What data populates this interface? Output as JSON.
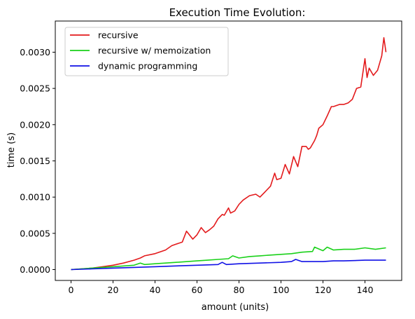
{
  "chart_data": {
    "type": "line",
    "title": "Execution Time Evolution:",
    "xlabel": "amount (units)",
    "ylabel": "time (s)",
    "xlim": [
      -7.5,
      157.5
    ],
    "ylim": [
      -0.00015,
      0.00343
    ],
    "x_ticks": [
      0,
      20,
      40,
      60,
      80,
      100,
      120,
      140
    ],
    "x_tick_labels": [
      "0",
      "20",
      "40",
      "60",
      "80",
      "100",
      "120",
      "140"
    ],
    "y_ticks": [
      0,
      0.0005,
      0.001,
      0.0015,
      0.002,
      0.0025,
      0.003
    ],
    "y_tick_labels": [
      "0.0000",
      "0.0005",
      "0.0010",
      "0.0015",
      "0.0020",
      "0.0025",
      "0.0030"
    ],
    "grid": false,
    "legend_position": "top-left",
    "series": [
      {
        "name": "recursive",
        "color": "#e31a1c",
        "x": [
          0,
          5,
          10,
          15,
          20,
          25,
          30,
          33,
          35,
          40,
          45,
          48,
          50,
          53,
          55,
          58,
          60,
          62,
          64,
          66,
          68,
          70,
          72,
          73,
          75,
          76,
          78,
          80,
          82,
          85,
          88,
          90,
          92,
          95,
          97,
          98,
          100,
          102,
          104,
          106,
          108,
          110,
          112,
          113,
          114,
          116,
          117,
          118,
          120,
          122,
          124,
          125,
          128,
          130,
          132,
          134,
          136,
          138,
          140,
          141,
          142,
          144,
          146,
          148,
          149,
          150
        ],
        "y": [
          0,
          1e-05,
          2e-05,
          4e-05,
          6e-05,
          9e-05,
          0.00013,
          0.00016,
          0.00019,
          0.00022,
          0.00027,
          0.00033,
          0.00035,
          0.00038,
          0.00053,
          0.00042,
          0.00048,
          0.00058,
          0.00051,
          0.00055,
          0.0006,
          0.0007,
          0.00076,
          0.00075,
          0.00085,
          0.00078,
          0.00081,
          0.0009,
          0.00096,
          0.00102,
          0.00104,
          0.001,
          0.00106,
          0.00115,
          0.00133,
          0.00124,
          0.00126,
          0.00145,
          0.00132,
          0.00156,
          0.00142,
          0.0017,
          0.0017,
          0.00166,
          0.00168,
          0.00178,
          0.00185,
          0.00195,
          0.002,
          0.00212,
          0.00225,
          0.00225,
          0.00228,
          0.00228,
          0.0023,
          0.00235,
          0.0025,
          0.00252,
          0.00291,
          0.00265,
          0.00278,
          0.00268,
          0.00275,
          0.00295,
          0.0032,
          0.003
        ]
      },
      {
        "name": "recursive w/ memoization",
        "color": "#1ad11a",
        "x": [
          0,
          10,
          20,
          30,
          33,
          35,
          40,
          50,
          60,
          65,
          70,
          75,
          77,
          80,
          85,
          90,
          95,
          100,
          105,
          110,
          115,
          116,
          120,
          122,
          125,
          130,
          135,
          140,
          145,
          150
        ],
        "y": [
          0,
          2e-05,
          4e-05,
          6e-05,
          9e-05,
          7e-05,
          8e-05,
          0.0001,
          0.00012,
          0.00013,
          0.00014,
          0.00015,
          0.00019,
          0.00016,
          0.00018,
          0.00019,
          0.0002,
          0.00021,
          0.00022,
          0.00024,
          0.00025,
          0.00031,
          0.00026,
          0.00031,
          0.00027,
          0.00028,
          0.00028,
          0.0003,
          0.00028,
          0.0003
        ]
      },
      {
        "name": "dynamic programming",
        "color": "#1010e6",
        "x": [
          0,
          10,
          20,
          30,
          40,
          50,
          60,
          70,
          72,
          74,
          80,
          90,
          100,
          105,
          107,
          110,
          120,
          125,
          130,
          140,
          150
        ],
        "y": [
          0,
          1e-05,
          2e-05,
          3e-05,
          4e-05,
          5e-05,
          6e-05,
          7e-05,
          0.0001,
          7e-05,
          8e-05,
          9e-05,
          0.0001,
          0.00011,
          0.00014,
          0.00011,
          0.00011,
          0.00012,
          0.00012,
          0.00013,
          0.00013
        ]
      }
    ]
  }
}
